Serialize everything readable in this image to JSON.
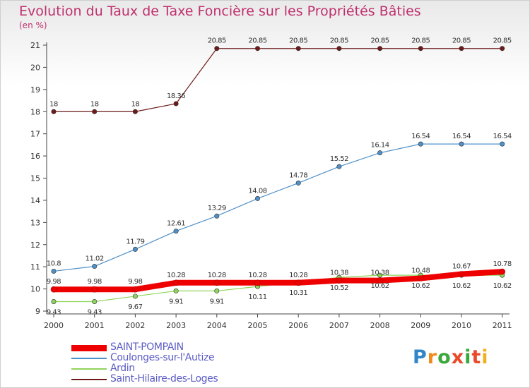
{
  "chart_data": {
    "type": "line",
    "title": "Evolution du Taux de Taxe Foncière sur les Propriétés Bâties",
    "ylabel": "(en %)",
    "xlabel": "",
    "categories": [
      "2000",
      "2001",
      "2002",
      "2003",
      "2004",
      "2005",
      "2006",
      "2007",
      "2008",
      "2009",
      "2010",
      "2011"
    ],
    "ylim": [
      9,
      21
    ],
    "yticks": [
      "9",
      "10",
      "11",
      "12",
      "13",
      "14",
      "15",
      "16",
      "17",
      "18",
      "19",
      "20",
      "21"
    ],
    "grid": false,
    "series": [
      {
        "name": "SAINT-POMPAIN",
        "color": "#ee0000",
        "values": [
          9.98,
          9.98,
          9.98,
          10.28,
          10.28,
          10.28,
          10.28,
          10.38,
          10.38,
          10.48,
          10.67,
          10.78
        ],
        "labels": [
          "9.98",
          "9.98",
          "9.98",
          "10.28",
          "10.28",
          "10.28",
          "10.28",
          "10.38",
          "10.38",
          "10.48",
          "10.67",
          "10.78"
        ]
      },
      {
        "name": "Coulonges-sur-l'Autize",
        "color": "#4f90c8",
        "values": [
          10.8,
          11.02,
          11.79,
          12.61,
          13.29,
          14.08,
          14.78,
          15.52,
          16.14,
          16.54,
          16.54,
          16.54
        ],
        "labels": [
          "10.8",
          "11.02",
          "11.79",
          "12.61",
          "13.29",
          "14.08",
          "14.78",
          "15.52",
          "16.14",
          "16.54",
          "16.54",
          "16.54"
        ]
      },
      {
        "name": "Ardin",
        "color": "#8fd45c",
        "values": [
          9.43,
          9.43,
          9.67,
          9.91,
          9.91,
          10.11,
          10.31,
          10.52,
          10.62,
          10.62,
          10.62,
          10.62
        ],
        "labels": [
          "9.43",
          "9.43",
          "9.67",
          "9.91",
          "9.91",
          "10.11",
          "10.31",
          "10.52",
          "10.62",
          "10.62",
          "10.62",
          "10.62"
        ]
      },
      {
        "name": "Saint-Hilaire-des-Loges",
        "color": "#6e1a1a",
        "values": [
          18,
          18,
          18,
          18.36,
          20.85,
          20.85,
          20.85,
          20.85,
          20.85,
          20.85,
          20.85,
          20.85
        ],
        "labels": [
          "18",
          "18",
          "18",
          "18.36",
          "20.85",
          "20.85",
          "20.85",
          "20.85",
          "20.85",
          "20.85",
          "20.85",
          "20.85"
        ]
      }
    ]
  },
  "logo": {
    "text": "Proxiti"
  }
}
